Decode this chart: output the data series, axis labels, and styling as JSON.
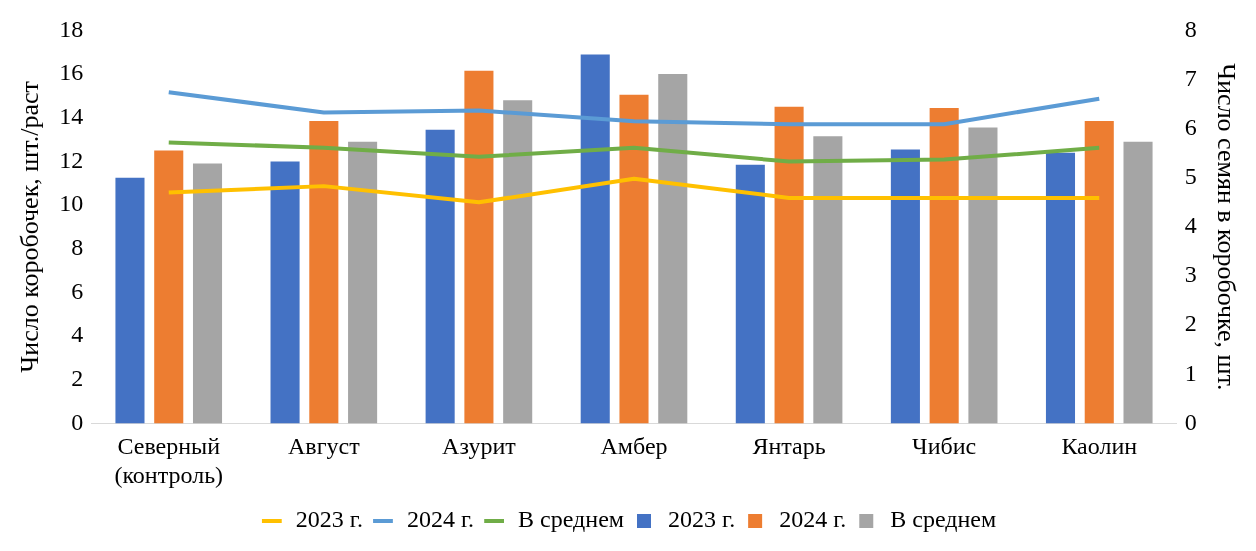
{
  "chart_data": {
    "type": "bar",
    "categories": [
      "Северный\n(контроль)",
      "Август",
      "Азурит",
      "Амбер",
      "Янтарь",
      "Чибис",
      "Каолин"
    ],
    "ylabel": "Число коробочек, шт./раст",
    "y2label": "Число семян в коробочке, шт.",
    "ylim": [
      0,
      18
    ],
    "yticks": [
      0,
      2,
      4,
      6,
      8,
      10,
      12,
      14,
      16,
      18
    ],
    "y2lim": [
      0,
      8
    ],
    "y2ticks": [
      0,
      1,
      2,
      3,
      4,
      5,
      6,
      7,
      8
    ],
    "grid": false,
    "legend": "bottom",
    "series": [
      {
        "name": "2023 г.",
        "color": "#4472c4",
        "values": [
          11.25,
          12.0,
          13.45,
          16.9,
          11.85,
          12.55,
          12.4
        ]
      },
      {
        "name": "2024 г.",
        "color": "#ed7d31",
        "values": [
          12.5,
          13.85,
          16.15,
          15.05,
          14.5,
          14.45,
          13.85
        ]
      },
      {
        "name": "В среднем",
        "color": "#a5a5a5",
        "values": [
          11.9,
          12.9,
          14.8,
          16.0,
          13.15,
          13.55,
          12.9
        ]
      },
      {
        "name": "2023 г.",
        "type": "line",
        "axis": "y2",
        "color": "#ffc000",
        "values": [
          4.7,
          4.83,
          4.5,
          4.98,
          4.59,
          4.59,
          4.59
        ]
      },
      {
        "name": "2024 г.",
        "type": "line",
        "axis": "y2",
        "color": "#5b9bd5",
        "values": [
          6.74,
          6.33,
          6.37,
          6.15,
          6.09,
          6.09,
          6.61
        ]
      },
      {
        "name": "В среднем",
        "type": "line",
        "axis": "y2",
        "color": "#70ad47",
        "values": [
          5.72,
          5.61,
          5.43,
          5.61,
          5.33,
          5.37,
          5.61
        ]
      }
    ]
  }
}
